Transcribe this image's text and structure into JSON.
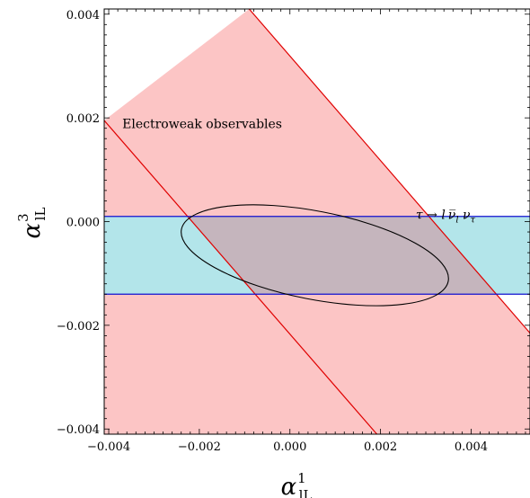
{
  "chart_data": {
    "type": "area",
    "title": "",
    "xlabel": {
      "symbol": "α",
      "superscript": "1",
      "subscript": "lL"
    },
    "ylabel": {
      "symbol": "α",
      "superscript": "3",
      "subscript": "lL"
    },
    "xlim": [
      -0.0041,
      0.0053
    ],
    "ylim": [
      -0.0041,
      0.0041
    ],
    "x_ticks": [
      -0.004,
      -0.002,
      0.0,
      0.002,
      0.004
    ],
    "x_tick_labels": [
      "−0.004",
      "−0.002",
      "0.000",
      "0.002",
      "0.004"
    ],
    "y_ticks": [
      -0.004,
      -0.002,
      0.0,
      0.002,
      0.004
    ],
    "y_tick_labels": [
      "−0.004",
      "−0.002",
      "0.000",
      "0.002",
      "0.004"
    ],
    "grid": false,
    "series": [
      {
        "kind": "band",
        "label": "Electroweak observables",
        "description": "region between two parallel lines",
        "line1": [
          [
            -0.0041,
            0.00195
          ],
          [
            0.00192,
            -0.0041
          ]
        ],
        "line2": [
          [
            -0.0009,
            0.0041
          ],
          [
            0.0053,
            -0.00215
          ]
        ],
        "fill": "#fcc5c5",
        "stroke": "#e00000"
      },
      {
        "kind": "band",
        "label_parts": {
          "a": "τ → ",
          "b": "l",
          "c": "ν̅",
          "c_sub": "l",
          "d": " ν",
          "d_sub": "τ"
        },
        "y_range": [
          -0.0014,
          0.0001
        ],
        "fill": "#b3e5ea",
        "stroke": "#1010d0"
      },
      {
        "kind": "ellipse",
        "center": [
          0.00055,
          -0.00065
        ],
        "semi_axes": [
          0.003,
          0.00085
        ],
        "rotation_deg": -11,
        "stroke": "#000000"
      }
    ],
    "overlap_fill": "#c5b5bd",
    "annotations": [
      {
        "text": "Electroweak observables",
        "at": [
          -0.0037,
          0.0018
        ]
      },
      {
        "ref": "series.1.label_parts",
        "at": [
          0.00278,
          5e-05
        ]
      }
    ]
  }
}
